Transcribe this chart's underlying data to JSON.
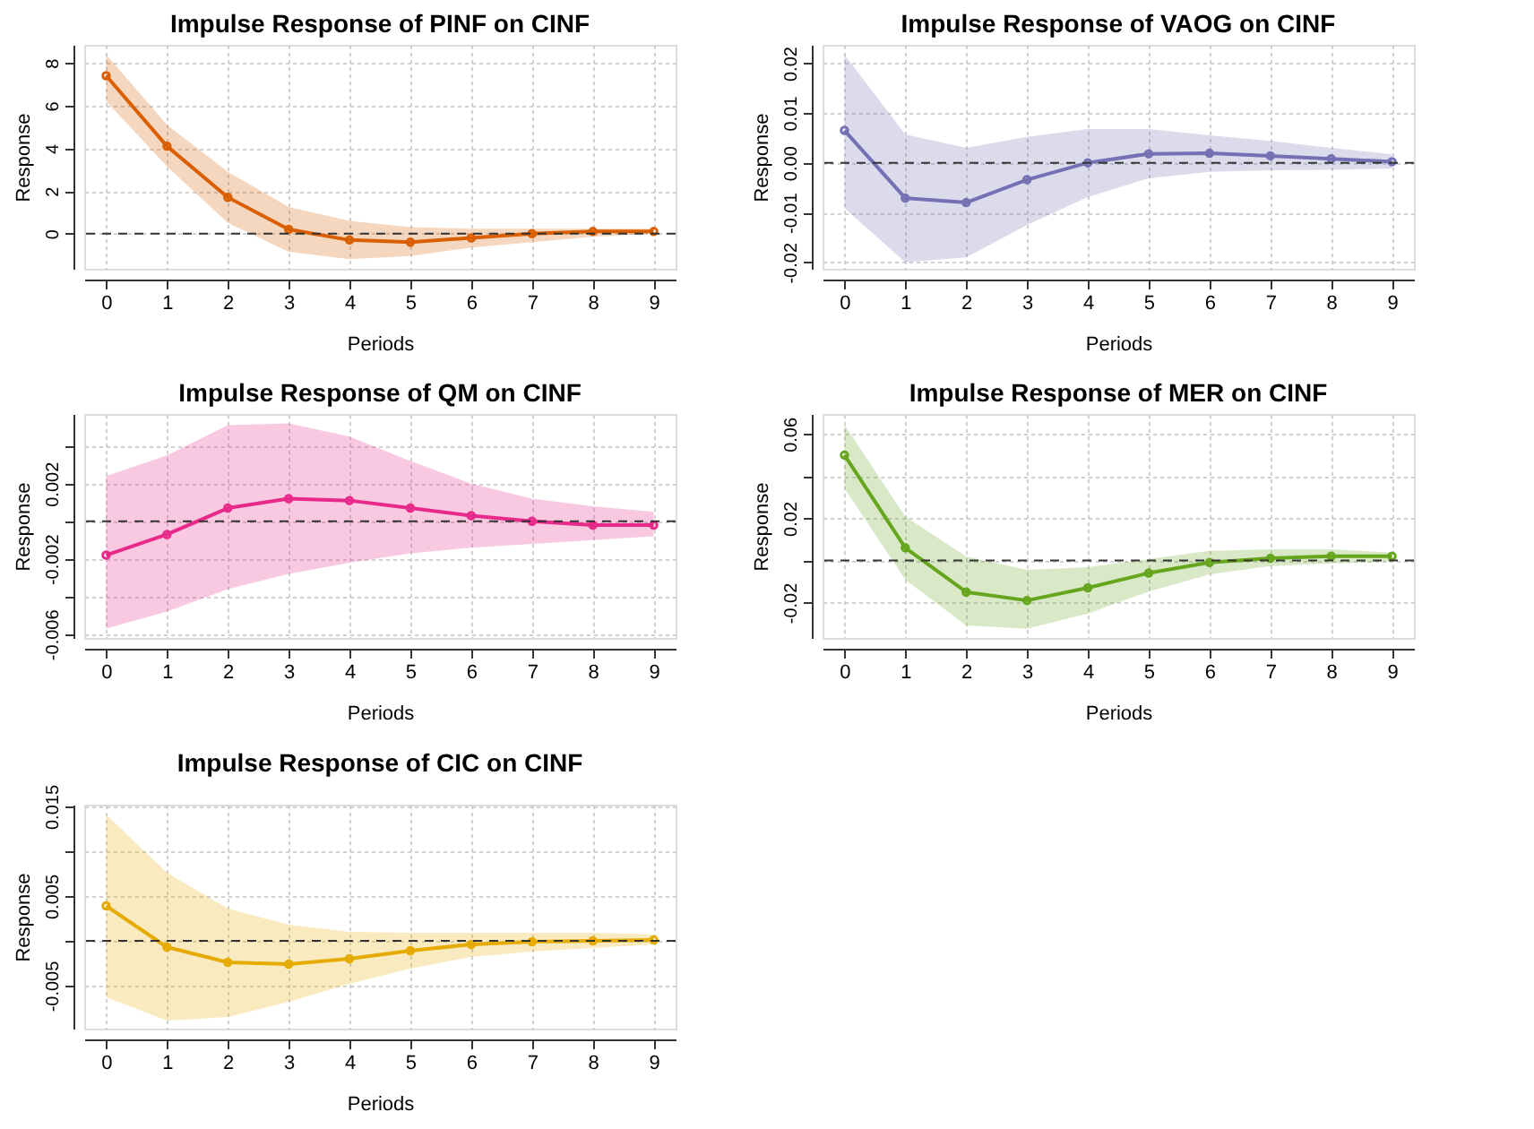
{
  "chart_data": [
    {
      "type": "line",
      "title": "Impulse Response of PINF on CINF",
      "xlabel": "Periods",
      "ylabel": "Response",
      "x": [
        0,
        1,
        2,
        3,
        4,
        5,
        6,
        7,
        8,
        9
      ],
      "xlim": [
        -0.36,
        9.36
      ],
      "xticks": [
        0,
        1,
        2,
        3,
        4,
        5,
        6,
        7,
        8,
        9
      ],
      "ylim": [
        -1.65,
        8.85
      ],
      "yticks": [
        0,
        2,
        4,
        6,
        8
      ],
      "grid": true,
      "marker": "circle",
      "line_style": "solid",
      "series": [
        {
          "color": "#d95f02",
          "values": [
            7.4,
            4.1,
            1.7,
            0.2,
            -0.3,
            -0.4,
            -0.2,
            0,
            0.1,
            0.1
          ],
          "lower": [
            6.2,
            3.15,
            0.5,
            -0.85,
            -1.2,
            -1.05,
            -0.65,
            -0.4,
            -0.15,
            0
          ],
          "upper": [
            8.4,
            5.1,
            2.9,
            1.25,
            0.6,
            0.3,
            0.23,
            0.23,
            0.23,
            0.23
          ]
        }
      ],
      "ref_lines": [
        {
          "axis": "y",
          "value": 0,
          "color": "#333333",
          "line_style": "dashed"
        }
      ]
    },
    {
      "type": "line",
      "title": "Impulse Response of VAOG on CINF",
      "xlabel": "Periods",
      "ylabel": "Response",
      "x": [
        0,
        1,
        2,
        3,
        4,
        5,
        6,
        7,
        8,
        9
      ],
      "xlim": [
        -0.36,
        9.36
      ],
      "xticks": [
        0,
        1,
        2,
        3,
        4,
        5,
        6,
        7,
        8,
        9
      ],
      "ylim": [
        -0.0213,
        0.0237
      ],
      "yticks": [
        -0.02,
        -0.01,
        {
          "value": 0,
          "label": "0.00"
        },
        0.01,
        0.02
      ],
      "grid": true,
      "marker": "circle",
      "line_style": "solid",
      "series": [
        {
          "color": "#7570b3",
          "values": [
            0.0065,
            -0.0071,
            -0.008,
            -0.0034,
            0,
            0.0018,
            0.0019,
            0.0014,
            0.0008,
            0.0002
          ],
          "lower": [
            -0.0091,
            -0.02,
            -0.019,
            -0.0125,
            -0.0069,
            -0.0031,
            -0.0018,
            -0.0015,
            -0.0014,
            -0.0012
          ],
          "upper": [
            0.0217,
            0.0057,
            0.003,
            0.0052,
            0.0068,
            0.0068,
            0.0055,
            0.0044,
            0.003,
            0.0017
          ]
        }
      ],
      "ref_lines": [
        {
          "axis": "y",
          "value": 0,
          "color": "#333333",
          "line_style": "dashed"
        }
      ]
    },
    {
      "type": "line",
      "title": "Impulse Response of QM on CINF",
      "xlabel": "Periods",
      "ylabel": "Response",
      "x": [
        0,
        1,
        2,
        3,
        4,
        5,
        6,
        7,
        8,
        9
      ],
      "xlim": [
        -0.36,
        9.36
      ],
      "xticks": [
        0,
        1,
        2,
        3,
        4,
        5,
        6,
        7,
        8,
        9
      ],
      "ylim": [
        -0.0062,
        0.0057
      ],
      "yticks": [
        -0.006,
        {
          "value": -0.004,
          "label": null
        },
        -0.002,
        {
          "value": 0,
          "label": null
        },
        0.002,
        {
          "value": 0.004,
          "label": null
        }
      ],
      "grid": true,
      "marker": "circle",
      "line_style": "solid",
      "series": [
        {
          "color": "#e7298a",
          "values": [
            -0.0018,
            -0.0007,
            0.0007,
            0.0012,
            0.0011,
            0.0007,
            0.0003,
            0,
            -0.0002,
            -0.0002
          ],
          "lower": [
            -0.0057,
            -0.0048,
            -0.0036,
            -0.0028,
            -0.0022,
            -0.0017,
            -0.0014,
            -0.0012,
            -0.001,
            -0.0008
          ],
          "upper": [
            0.0024,
            0.0035,
            0.0051,
            0.0052,
            0.0045,
            0.0032,
            0.002,
            0.0012,
            0.0008,
            0.0005
          ]
        }
      ],
      "ref_lines": [
        {
          "axis": "y",
          "value": 0,
          "color": "#333333",
          "line_style": "dashed"
        }
      ]
    },
    {
      "type": "line",
      "title": "Impulse Response of MER on CINF",
      "xlabel": "Periods",
      "ylabel": "Response",
      "x": [
        0,
        1,
        2,
        3,
        4,
        5,
        6,
        7,
        8,
        9
      ],
      "xlim": [
        -0.36,
        9.36
      ],
      "xticks": [
        0,
        1,
        2,
        3,
        4,
        5,
        6,
        7,
        8,
        9
      ],
      "ylim": [
        -0.0368,
        0.0695
      ],
      "yticks": [
        -0.02,
        {
          "value": 0,
          "label": null
        },
        0.02,
        {
          "value": 0.04,
          "label": null
        },
        0.06
      ],
      "grid": true,
      "marker": "circle",
      "line_style": "solid",
      "series": [
        {
          "color": "#66a61e",
          "values": [
            0.05,
            0.006,
            -0.015,
            -0.019,
            -0.013,
            -0.006,
            -0.001,
            0.001,
            0.002,
            0.002
          ],
          "lower": [
            0.0342,
            -0.0092,
            -0.0308,
            -0.0324,
            -0.0252,
            -0.0148,
            -0.0066,
            -0.0027,
            -0.0014,
            -0.0006
          ],
          "upper": [
            0.0644,
            0.0208,
            0.0019,
            -0.0045,
            -0.0032,
            0.0006,
            0.0045,
            0.0053,
            0.0053,
            0.0037
          ]
        }
      ],
      "ref_lines": [
        {
          "axis": "y",
          "value": 0,
          "color": "#333333",
          "line_style": "dashed"
        }
      ]
    },
    {
      "type": "line",
      "title": "Impulse Response of CIC on CINF",
      "xlabel": "Periods",
      "ylabel": "Response",
      "x": [
        0,
        1,
        2,
        3,
        4,
        5,
        6,
        7,
        8,
        9
      ],
      "xlim": [
        -0.36,
        9.36
      ],
      "xticks": [
        0,
        1,
        2,
        3,
        4,
        5,
        6,
        7,
        8,
        9
      ],
      "ylim": [
        -0.0098,
        0.0152
      ],
      "yticks": [
        -0.005,
        {
          "value": 0,
          "label": null
        },
        0.005,
        {
          "value": 0.01,
          "label": null
        },
        0.015
      ],
      "grid": true,
      "marker": "circle",
      "line_style": "solid",
      "series": [
        {
          "color": "#e6ab02",
          "values": [
            0.0039,
            -0.0007,
            -0.0024,
            -0.0026,
            -0.002,
            -0.0011,
            -0.0004,
            -0.0001,
            0,
            0.0001
          ],
          "lower": [
            -0.0063,
            -0.0089,
            -0.0085,
            -0.0068,
            -0.0048,
            -0.0031,
            -0.0018,
            -0.0012,
            -0.0008,
            -0.0004
          ],
          "upper": [
            0.0141,
            0.0076,
            0.0036,
            0.0018,
            0.001,
            0.0009,
            0.0009,
            0.0009,
            0.0009,
            0.0007
          ]
        }
      ],
      "ref_lines": [
        {
          "axis": "y",
          "value": 0,
          "color": "#333333",
          "line_style": "dashed"
        }
      ]
    }
  ]
}
